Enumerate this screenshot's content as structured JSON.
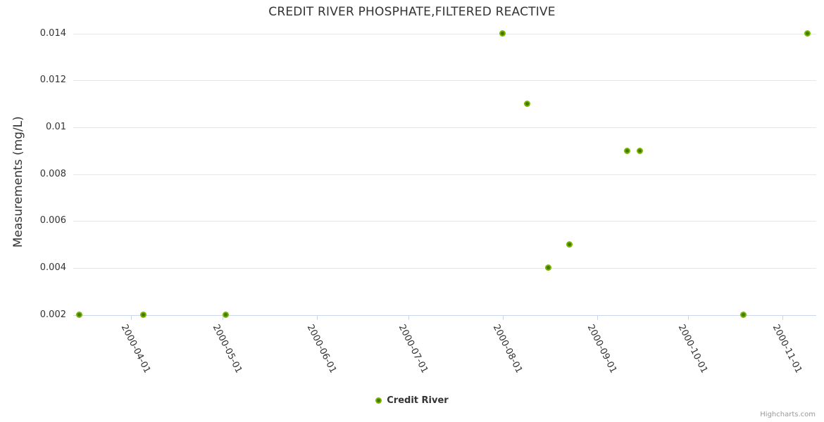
{
  "chart_data": {
    "type": "scatter",
    "title": "CREDIT RIVER PHOSPHATE,FILTERED REACTIVE",
    "xlabel": "",
    "ylabel": "Measurements (mg/L)",
    "x_type": "datetime",
    "xlim": [
      "2000-03-13",
      "2000-11-12"
    ],
    "ylim": [
      0.002,
      0.014
    ],
    "grid": "horizontal",
    "legend_position": "bottom-center",
    "y_ticks": [
      {
        "value": 0.002,
        "label": "0.002"
      },
      {
        "value": 0.004,
        "label": "0.004"
      },
      {
        "value": 0.006,
        "label": "0.006"
      },
      {
        "value": 0.008,
        "label": "0.008"
      },
      {
        "value": 0.01,
        "label": "0.01"
      },
      {
        "value": 0.012,
        "label": "0.012"
      },
      {
        "value": 0.014,
        "label": "0.014"
      }
    ],
    "x_ticks": [
      {
        "date": "2000-04-01",
        "label": "2000-04-01"
      },
      {
        "date": "2000-05-01",
        "label": "2000-05-01"
      },
      {
        "date": "2000-06-01",
        "label": "2000-06-01"
      },
      {
        "date": "2000-07-01",
        "label": "2000-07-01"
      },
      {
        "date": "2000-08-01",
        "label": "2000-08-01"
      },
      {
        "date": "2000-09-01",
        "label": "2000-09-01"
      },
      {
        "date": "2000-10-01",
        "label": "2000-10-01"
      },
      {
        "date": "2000-11-01",
        "label": "2000-11-01"
      }
    ],
    "series": [
      {
        "name": "Credit River",
        "color": "#7cb500",
        "marker_core_color": "#3f7a00",
        "data": [
          {
            "date": "2000-03-15",
            "value": 0.002
          },
          {
            "date": "2000-04-05",
            "value": 0.002
          },
          {
            "date": "2000-05-02",
            "value": 0.002
          },
          {
            "date": "2000-08-01",
            "value": 0.014
          },
          {
            "date": "2000-08-09",
            "value": 0.011
          },
          {
            "date": "2000-08-16",
            "value": 0.004
          },
          {
            "date": "2000-08-23",
            "value": 0.005
          },
          {
            "date": "2000-09-11",
            "value": 0.009
          },
          {
            "date": "2000-09-15",
            "value": 0.009
          },
          {
            "date": "2000-10-19",
            "value": 0.002
          },
          {
            "date": "2000-11-09",
            "value": 0.014
          }
        ]
      }
    ],
    "credits": "Highcharts.com"
  },
  "colors": {
    "accent": "#7cb500",
    "marker_core": "#3f7a00",
    "grid": "#e6e6e6",
    "axis_line": "#ccd6eb",
    "text": "#333333",
    "credits_text": "#999999",
    "background": "#ffffff"
  }
}
